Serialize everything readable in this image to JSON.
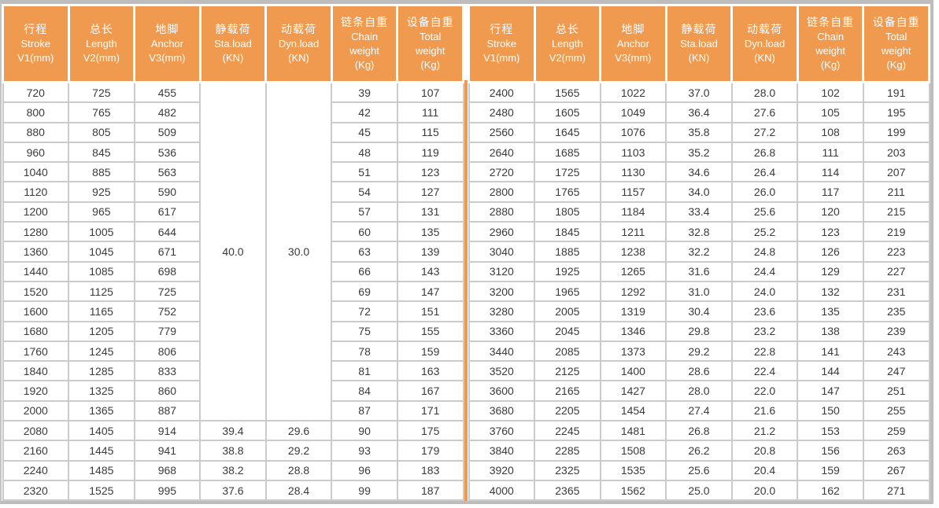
{
  "table": {
    "accent_color": "#F09A50",
    "grid_color": "#CBCBCB",
    "outer_border_color": "#BDBDBD",
    "header_text_color": "#FFFFFF",
    "body_text_color": "#3A3A3A",
    "columns": [
      {
        "lines": [
          "行程",
          "Stroke",
          "V1(mm)"
        ]
      },
      {
        "lines": [
          "总长",
          "Length",
          "V2(mm)"
        ]
      },
      {
        "lines": [
          "地脚",
          "Anchor",
          "V3(mm)"
        ]
      },
      {
        "lines": [
          "静载荷",
          "Sta.load",
          "(KN)"
        ]
      },
      {
        "lines": [
          "动载荷",
          "Dyn.load",
          "(KN)"
        ]
      },
      {
        "lines": [
          "链条自重",
          "Chain",
          "weight",
          "(Kg)"
        ]
      },
      {
        "lines": [
          "设备自重",
          "Total",
          "weight",
          "(Kg)"
        ]
      }
    ],
    "left_table": {
      "merged": {
        "sta_load": "40.0",
        "dyn_load": "30.0",
        "row_span": 17
      },
      "rows": [
        [
          "720",
          "725",
          "455",
          null,
          null,
          "39",
          "107"
        ],
        [
          "800",
          "765",
          "482",
          null,
          null,
          "42",
          "111"
        ],
        [
          "880",
          "805",
          "509",
          null,
          null,
          "45",
          "115"
        ],
        [
          "960",
          "845",
          "536",
          null,
          null,
          "48",
          "119"
        ],
        [
          "1040",
          "885",
          "563",
          null,
          null,
          "51",
          "123"
        ],
        [
          "1120",
          "925",
          "590",
          null,
          null,
          "54",
          "127"
        ],
        [
          "1200",
          "965",
          "617",
          null,
          null,
          "57",
          "131"
        ],
        [
          "1280",
          "1005",
          "644",
          null,
          null,
          "60",
          "135"
        ],
        [
          "1360",
          "1045",
          "671",
          null,
          null,
          "63",
          "139"
        ],
        [
          "1440",
          "1085",
          "698",
          null,
          null,
          "66",
          "143"
        ],
        [
          "1520",
          "1125",
          "725",
          null,
          null,
          "69",
          "147"
        ],
        [
          "1600",
          "1165",
          "752",
          null,
          null,
          "72",
          "151"
        ],
        [
          "1680",
          "1205",
          "779",
          null,
          null,
          "75",
          "155"
        ],
        [
          "1760",
          "1245",
          "806",
          null,
          null,
          "78",
          "159"
        ],
        [
          "1840",
          "1285",
          "833",
          null,
          null,
          "81",
          "163"
        ],
        [
          "1920",
          "1325",
          "860",
          null,
          null,
          "84",
          "167"
        ],
        [
          "2000",
          "1365",
          "887",
          null,
          null,
          "87",
          "171"
        ],
        [
          "2080",
          "1405",
          "914",
          "39.4",
          "29.6",
          "90",
          "175"
        ],
        [
          "2160",
          "1445",
          "941",
          "38.8",
          "29.2",
          "93",
          "179"
        ],
        [
          "2240",
          "1485",
          "968",
          "38.2",
          "28.8",
          "96",
          "183"
        ],
        [
          "2320",
          "1525",
          "995",
          "37.6",
          "28.4",
          "99",
          "187"
        ]
      ]
    },
    "right_table": {
      "rows": [
        [
          "2400",
          "1565",
          "1022",
          "37.0",
          "28.0",
          "102",
          "191"
        ],
        [
          "2480",
          "1605",
          "1049",
          "36.4",
          "27.6",
          "105",
          "195"
        ],
        [
          "2560",
          "1645",
          "1076",
          "35.8",
          "27.2",
          "108",
          "199"
        ],
        [
          "2640",
          "1685",
          "1103",
          "35.2",
          "26.8",
          "111",
          "203"
        ],
        [
          "2720",
          "1725",
          "1130",
          "34.6",
          "26.4",
          "114",
          "207"
        ],
        [
          "2800",
          "1765",
          "1157",
          "34.0",
          "26.0",
          "117",
          "211"
        ],
        [
          "2880",
          "1805",
          "1184",
          "33.4",
          "25.6",
          "120",
          "215"
        ],
        [
          "2960",
          "1845",
          "1211",
          "32.8",
          "25.2",
          "123",
          "219"
        ],
        [
          "3040",
          "1885",
          "1238",
          "32.2",
          "24.8",
          "126",
          "223"
        ],
        [
          "3120",
          "1925",
          "1265",
          "31.6",
          "24.4",
          "129",
          "227"
        ],
        [
          "3200",
          "1965",
          "1292",
          "31.0",
          "24.0",
          "132",
          "231"
        ],
        [
          "3280",
          "2005",
          "1319",
          "30.4",
          "23.6",
          "135",
          "235"
        ],
        [
          "3360",
          "2045",
          "1346",
          "29.8",
          "23.2",
          "138",
          "239"
        ],
        [
          "3440",
          "2085",
          "1373",
          "29.2",
          "22.8",
          "141",
          "243"
        ],
        [
          "3520",
          "2125",
          "1400",
          "28.6",
          "22.4",
          "144",
          "247"
        ],
        [
          "3600",
          "2165",
          "1427",
          "28.0",
          "22.0",
          "147",
          "251"
        ],
        [
          "3680",
          "2205",
          "1454",
          "27.4",
          "21.6",
          "150",
          "255"
        ],
        [
          "3760",
          "2245",
          "1481",
          "26.8",
          "21.2",
          "153",
          "259"
        ],
        [
          "3840",
          "2285",
          "1508",
          "26.2",
          "20.8",
          "156",
          "263"
        ],
        [
          "3920",
          "2325",
          "1535",
          "25.6",
          "20.4",
          "159",
          "267"
        ],
        [
          "4000",
          "2365",
          "1562",
          "25.0",
          "20.0",
          "162",
          "271"
        ]
      ]
    }
  }
}
